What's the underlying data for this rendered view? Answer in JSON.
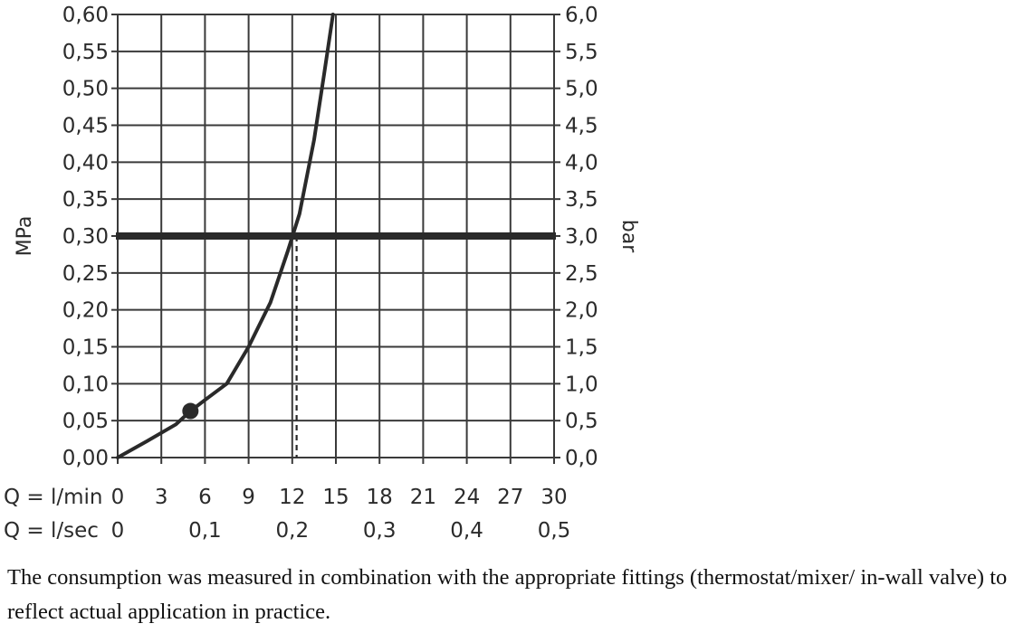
{
  "chart_data": {
    "type": "line",
    "y_left": {
      "label": "MPa",
      "ticks": [
        "0,00",
        "0,05",
        "0,10",
        "0,15",
        "0,20",
        "0,25",
        "0,30",
        "0,35",
        "0,40",
        "0,45",
        "0,50",
        "0,55",
        "0,60"
      ],
      "range": [
        0,
        0.6
      ]
    },
    "y_right": {
      "label": "bar",
      "ticks": [
        "0,0",
        "0,5",
        "1,0",
        "1,5",
        "2,0",
        "2,5",
        "3,0",
        "3,5",
        "4,0",
        "4,5",
        "5,0",
        "5,5",
        "6,0"
      ],
      "range": [
        0,
        6.0
      ]
    },
    "x_rows": [
      {
        "label": "Q = l/min",
        "ticks": [
          "0",
          "3",
          "6",
          "9",
          "12",
          "15",
          "18",
          "21",
          "24",
          "27",
          "30"
        ],
        "values": [
          0,
          3,
          6,
          9,
          12,
          15,
          18,
          21,
          24,
          27,
          30
        ]
      },
      {
        "label": "Q = l/sec",
        "ticks": [
          "0",
          "0,1",
          "0,2",
          "0,3",
          "0,4",
          "0,5"
        ],
        "values": [
          0,
          6,
          12,
          18,
          24,
          30
        ]
      }
    ],
    "xlim": [
      0,
      30
    ],
    "ylim": [
      0,
      0.6
    ],
    "grid": true,
    "series": [
      {
        "x": [
          0,
          2,
          4,
          5,
          6,
          7.5,
          9,
          10.5,
          11.7,
          12.5,
          13.5,
          14.2,
          14.8
        ],
        "y": [
          0,
          0.022,
          0.045,
          0.063,
          0.078,
          0.1,
          0.15,
          0.21,
          0.28,
          0.33,
          0.43,
          0.52,
          0.6
        ]
      }
    ],
    "marker": {
      "x": 5,
      "y": 0.063
    },
    "reference_line_y": 0.3,
    "reference_line_x": 12.3
  },
  "caption": "The consumption was measured in combination with the appropriate fittings (thermostat/mixer/ in-wall valve) to reflect actual application in practice."
}
